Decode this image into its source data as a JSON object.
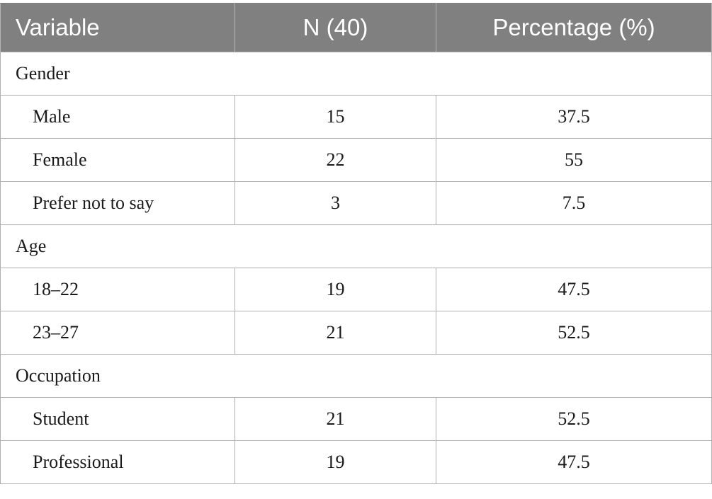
{
  "table": {
    "headers": [
      "Variable",
      "N (40)",
      "Percentage (%)"
    ],
    "rows": [
      {
        "type": "group",
        "label": "Gender"
      },
      {
        "type": "item",
        "label": "Male",
        "n": "15",
        "pct": "37.5"
      },
      {
        "type": "item",
        "label": "Female",
        "n": "22",
        "pct": "55"
      },
      {
        "type": "item",
        "label": "Prefer not to say",
        "n": "3",
        "pct": "7.5"
      },
      {
        "type": "group",
        "label": "Age"
      },
      {
        "type": "item",
        "label": "18–22",
        "n": "19",
        "pct": "47.5"
      },
      {
        "type": "item",
        "label": "23–27",
        "n": "21",
        "pct": "52.5"
      },
      {
        "type": "group",
        "label": "Occupation"
      },
      {
        "type": "item",
        "label": "Student",
        "n": "21",
        "pct": "52.5"
      },
      {
        "type": "item",
        "label": "Professional",
        "n": "19",
        "pct": "47.5"
      }
    ]
  },
  "colors": {
    "header_bg": "#808080",
    "header_text": "#ffffff",
    "border": "#b0b0b0",
    "body_text": "#1a1a1a"
  }
}
